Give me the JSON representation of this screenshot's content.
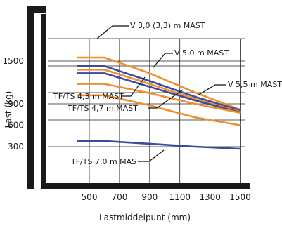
{
  "chart_data": {
    "type": "line",
    "xlabel": "Lastmiddelpunt (mm)",
    "ylabel": "Last (kg)",
    "x_ticks": [
      500,
      700,
      900,
      1100,
      1300,
      1500
    ],
    "y_ticks": [
      300,
      600,
      900,
      1500
    ],
    "xlim": [
      300,
      1500
    ],
    "ylim": [
      0,
      1700
    ],
    "grid": true,
    "series": [
      {
        "name": "V 3,0 (3,3) m MAST",
        "color": "#f0902a",
        "points": [
          [
            420,
            1550
          ],
          [
            600,
            1550
          ],
          [
            900,
            1330
          ],
          [
            1200,
            1060
          ],
          [
            1500,
            820
          ]
        ]
      },
      {
        "name": "",
        "color": "#3b4a9c",
        "points": [
          [
            420,
            1430
          ],
          [
            600,
            1430
          ],
          [
            900,
            1220
          ],
          [
            1200,
            1000
          ],
          [
            1500,
            810
          ]
        ]
      },
      {
        "name": "V 5,0 m MAST",
        "color": "#f0902a",
        "points": [
          [
            420,
            1380
          ],
          [
            600,
            1380
          ],
          [
            900,
            1180
          ],
          [
            1200,
            970
          ],
          [
            1500,
            790
          ]
        ]
      },
      {
        "name": "",
        "color": "#3b4a9c",
        "points": [
          [
            420,
            1330
          ],
          [
            600,
            1330
          ],
          [
            900,
            1140
          ],
          [
            1200,
            950
          ],
          [
            1500,
            780
          ]
        ]
      },
      {
        "name": "TF/TS 4,3 m MAST",
        "color": "#f0902a",
        "points": [
          [
            420,
            1180
          ],
          [
            600,
            1180
          ],
          [
            900,
            1050
          ],
          [
            1200,
            900
          ],
          [
            1500,
            775
          ]
        ]
      },
      {
        "name": "TF/TS 4,7 m MAST",
        "color": "#f0902a",
        "points": [
          [
            420,
            1020
          ],
          [
            600,
            1020
          ],
          [
            900,
            880
          ],
          [
            1200,
            710
          ],
          [
            1500,
            600
          ]
        ]
      },
      {
        "name": "TF/TS 7,0 m MAST",
        "color": "#3b4a9c",
        "points": [
          [
            420,
            380
          ],
          [
            600,
            380
          ],
          [
            900,
            340
          ],
          [
            1200,
            300
          ],
          [
            1500,
            270
          ]
        ]
      }
    ],
    "annotations": [
      {
        "text": "V 3,0 (3,3) m MAST",
        "series": 0
      },
      {
        "text": "V 5,0 m MAST",
        "series": 2
      },
      {
        "text": "V 5,5 m MAST",
        "series": 3
      },
      {
        "text": "TF/TS 4,3 m MAST",
        "series": 4
      },
      {
        "text": "TF/TS 4,7 m MAST",
        "series": 5
      },
      {
        "text": "TF/TS 7,0 m MAST",
        "series": 6
      }
    ]
  }
}
